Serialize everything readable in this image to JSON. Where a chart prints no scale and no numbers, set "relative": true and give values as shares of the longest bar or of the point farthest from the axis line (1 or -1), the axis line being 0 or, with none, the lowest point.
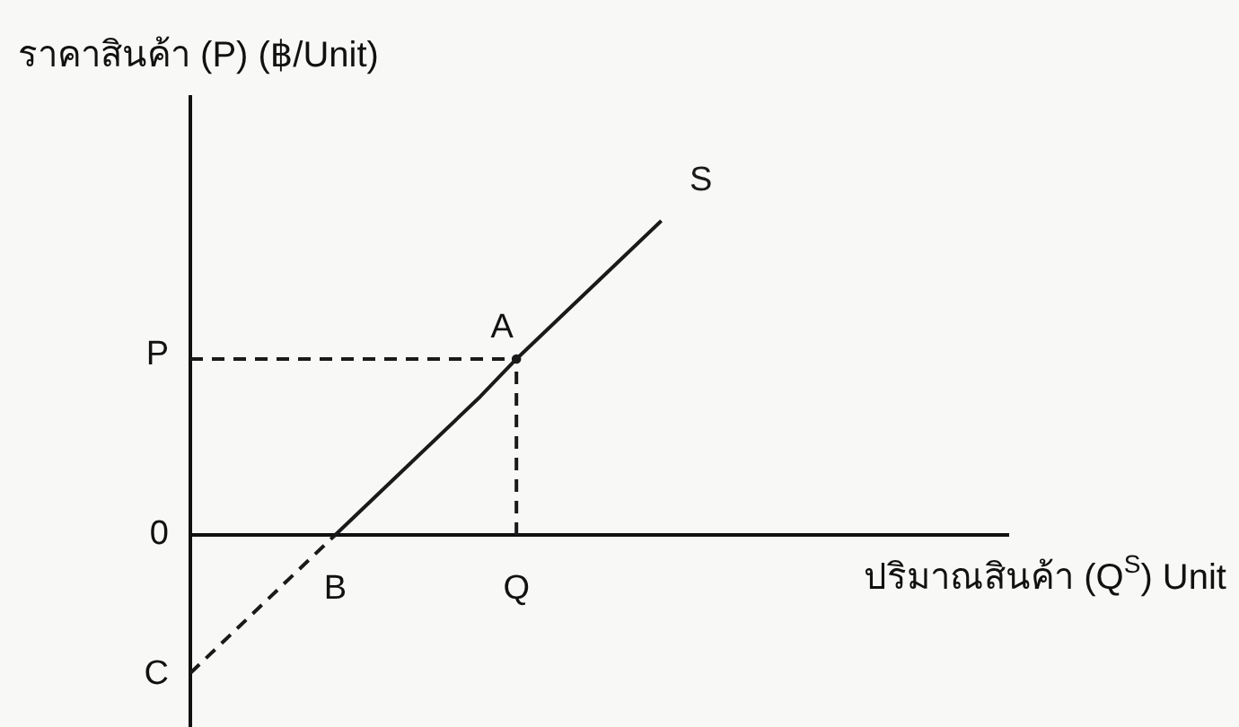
{
  "chart_data": {
    "type": "line",
    "relative": true,
    "ylabel": "ราคาสินค้า (P) (฿/Unit)",
    "xlabel": "ปริมาณสินค้า (Q$^{S}$) Unit",
    "categories": [
      null,
      null,
      null,
      null,
      "B",
      null,
      null,
      null,
      null,
      "Q",
      null,
      null,
      null,
      null,
      null,
      null,
      null,
      null,
      null,
      null,
      null,
      null,
      null
    ],
    "series": [
      {
        "name": "S",
        "color": "#1a1a1a",
        "values": [
          null,
          null,
          null,
          null,
          0,
          0.11,
          0.22,
          0.33,
          0.44,
          0.56,
          0.67,
          0.78,
          0.89,
          1,
          null,
          null,
          null,
          null,
          null,
          null,
          null,
          null,
          null
        ],
        "line_style": "solid"
      },
      {
        "color": "#1a1a1a",
        "values": [
          -0.44,
          -0.33,
          -0.22,
          -0.11,
          0,
          null,
          null,
          null,
          null,
          null,
          null,
          null,
          null,
          null,
          null,
          null,
          null,
          null,
          null,
          null,
          null,
          null,
          null
        ],
        "line_style": "dashed"
      },
      {
        "color": "#1a1a1a",
        "values": [
          0.56,
          0.56,
          0.56,
          0.56,
          0.56,
          0.56,
          0.56,
          0.56,
          0.56,
          0.56,
          null,
          null,
          null,
          null,
          null,
          null,
          null,
          null,
          null,
          null,
          null,
          null,
          null
        ],
        "line_style": "dashed"
      },
      {
        "type": "lollipop",
        "color": "#1a1a1a",
        "values": [
          null,
          null,
          null,
          null,
          null,
          null,
          null,
          null,
          null,
          0.56,
          null,
          null,
          null,
          null,
          null,
          null,
          null,
          null,
          null,
          null,
          null,
          null,
          null
        ],
        "line_style": "dashed",
        "marker": "circle"
      }
    ],
    "annotations": [
      {
        "text": "A",
        "x": "Q",
        "y": 0.56
      },
      "P",
      "0",
      "C"
    ]
  }
}
